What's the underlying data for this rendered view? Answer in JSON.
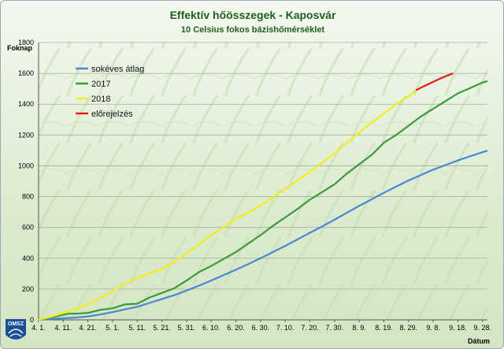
{
  "chart_data": {
    "type": "line",
    "title": "Effektív hőösszegek - Kaposvár",
    "subtitle": "10 Celsius fokos bázishőmérséklet",
    "ylabel": "Foknap",
    "xlabel": "Dátum",
    "ylim": [
      0,
      1800
    ],
    "yticks": [
      0,
      200,
      400,
      600,
      800,
      1000,
      1200,
      1400,
      1600,
      1800
    ],
    "xlim": [
      0,
      182
    ],
    "xticks": [
      {
        "label": "4. 1.",
        "day": 0
      },
      {
        "label": "4. 11.",
        "day": 10
      },
      {
        "label": "4. 21.",
        "day": 20
      },
      {
        "label": "5. 1.",
        "day": 30
      },
      {
        "label": "5. 11.",
        "day": 40
      },
      {
        "label": "5. 21.",
        "day": 50
      },
      {
        "label": "5. 31.",
        "day": 60
      },
      {
        "label": "6. 10.",
        "day": 70
      },
      {
        "label": "6. 20.",
        "day": 80
      },
      {
        "label": "6. 30.",
        "day": 90
      },
      {
        "label": "7. 10.",
        "day": 100
      },
      {
        "label": "7. 20.",
        "day": 110
      },
      {
        "label": "7. 30.",
        "day": 120
      },
      {
        "label": "8. 9.",
        "day": 130
      },
      {
        "label": "8. 19.",
        "day": 140
      },
      {
        "label": "8. 29.",
        "day": 150
      },
      {
        "label": "9. 8.",
        "day": 160
      },
      {
        "label": "9. 18.",
        "day": 170
      },
      {
        "label": "9. 28.",
        "day": 180
      }
    ],
    "grid": true,
    "legend_position": "top-left",
    "series": [
      {
        "name": "sokéves átlag",
        "color": "#4a86d6",
        "x": [
          0,
          5,
          10,
          15,
          20,
          25,
          30,
          35,
          40,
          45,
          50,
          55,
          60,
          65,
          70,
          75,
          80,
          85,
          90,
          95,
          100,
          105,
          110,
          115,
          120,
          125,
          130,
          135,
          140,
          145,
          150,
          155,
          160,
          165,
          170,
          175,
          180,
          182
        ],
        "y": [
          0,
          5,
          10,
          15,
          22,
          35,
          50,
          68,
          85,
          110,
          135,
          160,
          190,
          222,
          255,
          290,
          325,
          362,
          400,
          440,
          480,
          522,
          565,
          607,
          650,
          695,
          740,
          782,
          825,
          865,
          905,
          940,
          975,
          1005,
          1035,
          1062,
          1088,
          1098
        ]
      },
      {
        "name": "2017",
        "color": "#3a9a3a",
        "x": [
          0,
          5,
          8,
          12,
          15,
          20,
          25,
          30,
          35,
          40,
          45,
          50,
          55,
          60,
          65,
          70,
          75,
          80,
          85,
          90,
          95,
          100,
          105,
          110,
          115,
          120,
          125,
          130,
          135,
          140,
          145,
          150,
          155,
          160,
          165,
          170,
          175,
          180,
          182
        ],
        "y": [
          0,
          15,
          25,
          40,
          40,
          45,
          65,
          75,
          100,
          105,
          145,
          175,
          205,
          255,
          310,
          350,
          395,
          440,
          495,
          550,
          610,
          665,
          720,
          780,
          830,
          880,
          950,
          1010,
          1070,
          1150,
          1200,
          1260,
          1320,
          1370,
          1420,
          1470,
          1505,
          1540,
          1550
        ]
      },
      {
        "name": "2018",
        "color": "#f2ee1a",
        "x": [
          0,
          5,
          10,
          15,
          20,
          25,
          30,
          35,
          40,
          45,
          50,
          55,
          60,
          65,
          70,
          75,
          80,
          85,
          90,
          95,
          100,
          105,
          110,
          115,
          120,
          125,
          130,
          135,
          140,
          145,
          150,
          153
        ],
        "y": [
          0,
          20,
          45,
          70,
          100,
          145,
          185,
          235,
          270,
          300,
          330,
          375,
          430,
          490,
          550,
          600,
          655,
          695,
          745,
          795,
          850,
          905,
          960,
          1020,
          1080,
          1150,
          1215,
          1280,
          1340,
          1400,
          1450,
          1490
        ]
      },
      {
        "name": "előrejelzés",
        "color": "#e51a1a",
        "x": [
          153,
          156,
          160,
          164,
          168
        ],
        "y": [
          1490,
          1515,
          1545,
          1575,
          1600
        ]
      }
    ]
  },
  "logo": {
    "text": "OMSZ"
  }
}
